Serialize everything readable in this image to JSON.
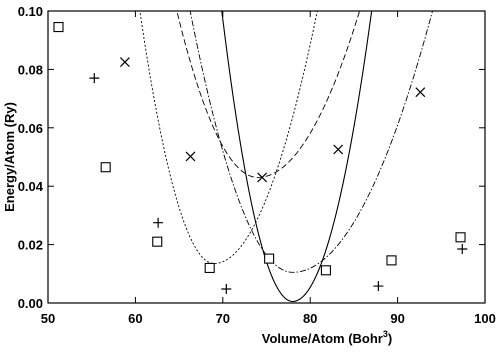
{
  "chart_data": {
    "type": "scatter",
    "xlabel": "Volume/Atom (Bohr",
    "xlabel_sup": "3",
    "xlabel_close": ")",
    "ylabel": "Energy/Atom (Ry)",
    "xlim": [
      50,
      100
    ],
    "ylim": [
      0.0,
      0.1
    ],
    "xticks": [
      50,
      60,
      70,
      80,
      90,
      100
    ],
    "yticks": [
      0.0,
      0.02,
      0.04,
      0.06,
      0.08,
      0.1
    ],
    "xtick_labels": [
      "50",
      "60",
      "70",
      "80",
      "90",
      "100"
    ],
    "ytick_labels": [
      "0.00",
      "0.02",
      "0.04",
      "0.06",
      "0.08",
      "0.10"
    ],
    "grid": false,
    "legend": "none",
    "series": [
      {
        "marker": "plus",
        "points": [
          [
            55.3,
            0.077
          ],
          [
            62.6,
            0.0275
          ],
          [
            70.4,
            0.0048
          ],
          [
            87.8,
            0.0058
          ],
          [
            97.4,
            0.0185
          ]
        ],
        "curve": {
          "style": "solid",
          "min_x": 78.0,
          "min_y": 0.0005,
          "k_left": 0.00151,
          "k_right": 0.00122
        }
      },
      {
        "marker": "cross",
        "points": [
          [
            58.8,
            0.0825
          ],
          [
            66.3,
            0.0502
          ],
          [
            74.5,
            0.043
          ],
          [
            83.2,
            0.0526
          ],
          [
            92.6,
            0.0722
          ]
        ],
        "curve": {
          "style": "dashed",
          "min_x": 74.0,
          "min_y": 0.043,
          "k_left": 0.000665,
          "k_right": 0.00042
        }
      },
      {
        "marker": "square",
        "points": [
          [
            51.2,
            0.0945
          ],
          [
            56.6,
            0.0465
          ],
          [
            62.5,
            0.021
          ],
          [
            68.5,
            0.012
          ],
          [
            75.3,
            0.0152
          ],
          [
            81.8,
            0.0112
          ],
          [
            89.3,
            0.0146
          ],
          [
            97.2,
            0.0225
          ]
        ],
        "curve": {
          "style": "dash-dot",
          "min_x": 78.0,
          "min_y": 0.0105,
          "k_left": 0.00065,
          "k_right": 0.00035
        }
      },
      {
        "marker": "none",
        "points": [],
        "curve": {
          "style": "dotted",
          "min_x": 69.0,
          "min_y": 0.0135,
          "k_left": 0.0012,
          "k_right": 0.00062
        }
      }
    ]
  }
}
